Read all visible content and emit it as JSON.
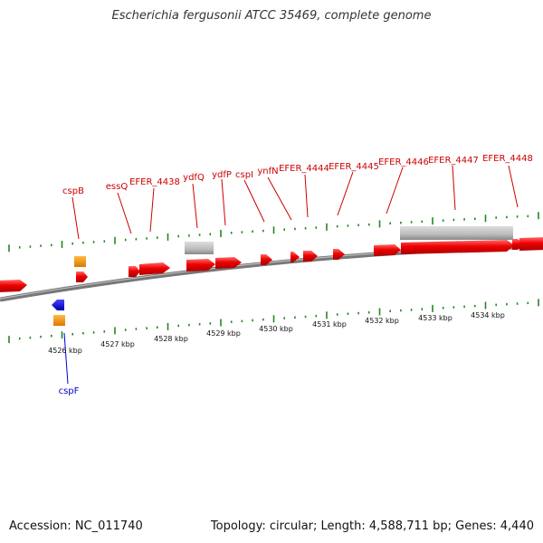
{
  "title": "Escherichia fergusonii ATCC 35469, complete genome",
  "footer": {
    "accession": "Accession: NC_011740",
    "summary": "Topology: circular; Length: 4,588,711 bp; Genes: 4,440"
  },
  "colors": {
    "cds": "#ee0000",
    "rna": "#bbbbbb",
    "orange": "#ff9900",
    "blue": "#0000dd",
    "tick": "#228822",
    "label_forward": "#cc0000",
    "label_reverse": "#0000cc"
  },
  "forward_labels": [
    {
      "text": "cspB"
    },
    {
      "text": "essQ"
    },
    {
      "text": "EFER_4438"
    },
    {
      "text": "ydfQ"
    },
    {
      "text": "ydfP"
    },
    {
      "text": "cspI"
    },
    {
      "text": "ynfN"
    },
    {
      "text": "EFER_4444"
    },
    {
      "text": "EFER_4445"
    },
    {
      "text": "EFER_4446"
    },
    {
      "text": "EFER_4447"
    },
    {
      "text": "EFER_4448"
    }
  ],
  "reverse_labels": [
    {
      "text": "cspF"
    }
  ],
  "scale_labels": [
    {
      "text": "4526 kbp"
    },
    {
      "text": "4527 kbp"
    },
    {
      "text": "4528 kbp"
    },
    {
      "text": "4529 kbp"
    },
    {
      "text": "4530 kbp"
    },
    {
      "text": "4531 kbp"
    },
    {
      "text": "4532 kbp"
    },
    {
      "text": "4533 kbp"
    },
    {
      "text": "4534 kbp"
    }
  ]
}
